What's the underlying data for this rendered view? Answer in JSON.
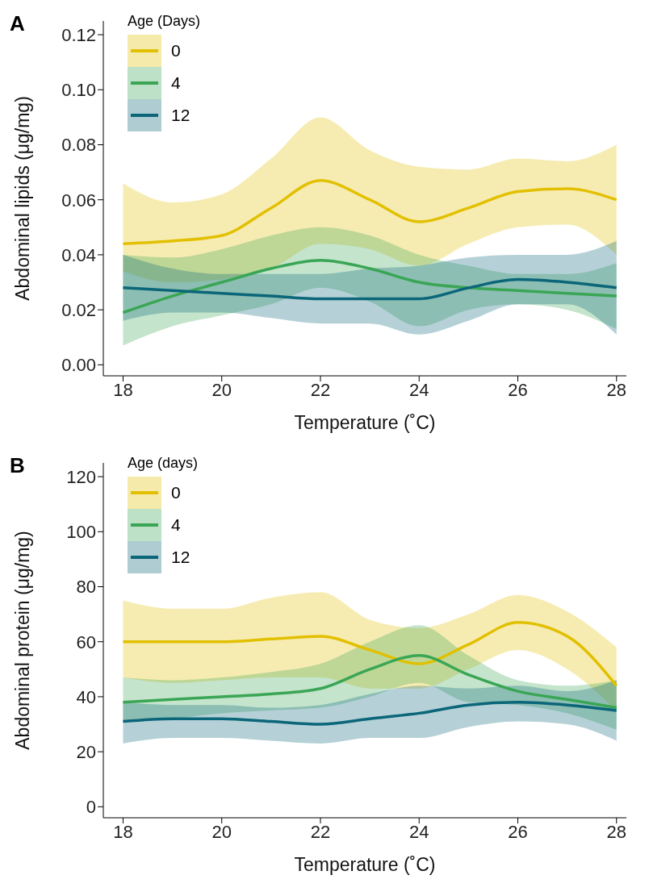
{
  "chart_data": [
    {
      "type": "line",
      "xlabel": "Temperature (˚C)",
      "ylabel": "Abdominal lipids (μg/mg)",
      "legend_title": "Age (Days)",
      "legend": "top left",
      "annotations": [
        "A"
      ],
      "x": [
        18,
        19,
        20,
        21,
        22,
        23,
        24,
        25,
        26,
        27,
        28
      ],
      "xlim": [
        17.6,
        28.2
      ],
      "xticks": [
        18,
        20,
        22,
        24,
        26,
        28
      ],
      "ylim": [
        -0.004,
        0.125
      ],
      "yticks": [
        {
          "value": 0,
          "label": "0.00"
        },
        0.02,
        0.04,
        0.06,
        0.08,
        {
          "value": 0.1,
          "label": "0.10"
        },
        0.12
      ],
      "series": [
        {
          "name": "0",
          "color": "#e2c000",
          "values": [
            0.044,
            0.045,
            0.047,
            0.057,
            0.067,
            0.06,
            0.052,
            0.057,
            0.063,
            0.064,
            0.06
          ],
          "lower": [
            0.034,
            0.03,
            0.031,
            0.035,
            0.044,
            0.042,
            0.036,
            0.044,
            0.05,
            0.051,
            0.04
          ],
          "upper": [
            0.066,
            0.059,
            0.062,
            0.075,
            0.09,
            0.078,
            0.072,
            0.071,
            0.075,
            0.074,
            0.08
          ]
        },
        {
          "name": "4",
          "color": "#3aa655",
          "values": [
            0.019,
            0.025,
            0.03,
            0.035,
            0.038,
            0.035,
            0.03,
            0.028,
            0.027,
            0.026,
            0.025
          ],
          "lower": [
            0.007,
            0.014,
            0.018,
            0.022,
            0.028,
            0.023,
            0.014,
            0.02,
            0.022,
            0.02,
            0.013
          ],
          "upper": [
            0.04,
            0.039,
            0.042,
            0.047,
            0.05,
            0.047,
            0.04,
            0.036,
            0.033,
            0.033,
            0.037
          ]
        },
        {
          "name": "12",
          "color": "#0b6679",
          "values": [
            0.028,
            0.027,
            0.026,
            0.025,
            0.024,
            0.024,
            0.024,
            0.028,
            0.031,
            0.03,
            0.028
          ],
          "lower": [
            0.016,
            0.019,
            0.019,
            0.017,
            0.015,
            0.015,
            0.011,
            0.016,
            0.022,
            0.022,
            0.011
          ],
          "upper": [
            0.04,
            0.035,
            0.033,
            0.033,
            0.033,
            0.035,
            0.036,
            0.039,
            0.04,
            0.04,
            0.045
          ]
        }
      ]
    },
    {
      "type": "line",
      "xlabel": "Temperature (˚C)",
      "ylabel": "Abdominal protein (μg/mg)",
      "legend_title": "Age (days)",
      "legend": "top left",
      "annotations": [
        "B"
      ],
      "x": [
        18,
        19,
        20,
        21,
        22,
        23,
        24,
        25,
        26,
        27,
        28
      ],
      "xlim": [
        17.6,
        28.2
      ],
      "xticks": [
        18,
        20,
        22,
        24,
        26,
        28
      ],
      "ylim": [
        -4,
        125
      ],
      "yticks": [
        0,
        20,
        40,
        60,
        80,
        100,
        120
      ],
      "series": [
        {
          "name": "0",
          "color": "#e2c000",
          "values": [
            60,
            60,
            60,
            61,
            62,
            57,
            52,
            59,
            67,
            62,
            44
          ],
          "lower": [
            47,
            45,
            46,
            47,
            47,
            43,
            43,
            50,
            57,
            50,
            35
          ],
          "upper": [
            75,
            72,
            72,
            76,
            78,
            68,
            65,
            70,
            77,
            71,
            58
          ]
        },
        {
          "name": "4",
          "color": "#3aa655",
          "values": [
            38,
            39,
            40,
            41,
            43,
            50,
            55,
            48,
            42,
            39,
            36
          ],
          "lower": [
            31,
            32,
            34,
            35,
            36,
            40,
            45,
            38,
            37,
            34,
            28
          ],
          "upper": [
            47,
            46,
            47,
            49,
            52,
            60,
            66,
            55,
            46,
            44,
            46
          ]
        },
        {
          "name": "12",
          "color": "#0b6679",
          "values": [
            31,
            32,
            32,
            31,
            30,
            32,
            34,
            37,
            38,
            37,
            35
          ],
          "lower": [
            23,
            25,
            25,
            24,
            23,
            25,
            25,
            29,
            31,
            30,
            24
          ],
          "upper": [
            38,
            37,
            37,
            36,
            37,
            41,
            44,
            43,
            44,
            42,
            46
          ]
        }
      ]
    }
  ]
}
